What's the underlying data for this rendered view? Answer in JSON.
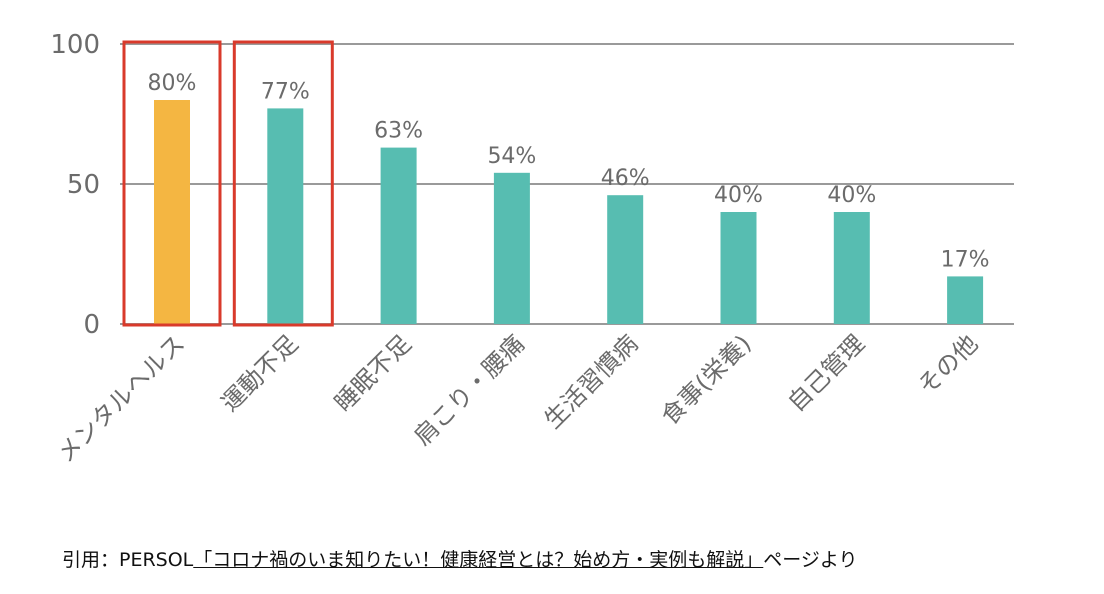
{
  "chart_data": {
    "type": "bar",
    "categories": [
      "メンタルヘルス",
      "運動不足",
      "睡眠不足",
      "肩こり・腰痛",
      "生活習慣病",
      "食事(栄養)",
      "自己管理",
      "その他"
    ],
    "values": [
      80,
      77,
      63,
      54,
      46,
      40,
      40,
      17
    ],
    "value_labels": [
      "80%",
      "77%",
      "63%",
      "54%",
      "46%",
      "40%",
      "40%",
      "17%"
    ],
    "ylim": [
      0,
      100
    ],
    "yticks": [
      0,
      50,
      100
    ],
    "ytick_labels": [
      "0",
      "50",
      "100"
    ],
    "grid": true,
    "title": "",
    "xlabel": "",
    "ylabel": "",
    "colors": {
      "bar": "#57bdb1",
      "highlight_bar": "#f4b642",
      "highlight_box": "#d93a2b",
      "grid": "#9a9a9a",
      "text": "#6b6b6b"
    },
    "highlight_bar_index": 0,
    "boxed_bar_indices": [
      0,
      1
    ]
  },
  "citation": {
    "prefix": "引用：PERSOL",
    "link_text": "「コロナ禍のいま知りたい！健康経営とは？始め方・実例も解説」",
    "suffix": "ページより"
  }
}
